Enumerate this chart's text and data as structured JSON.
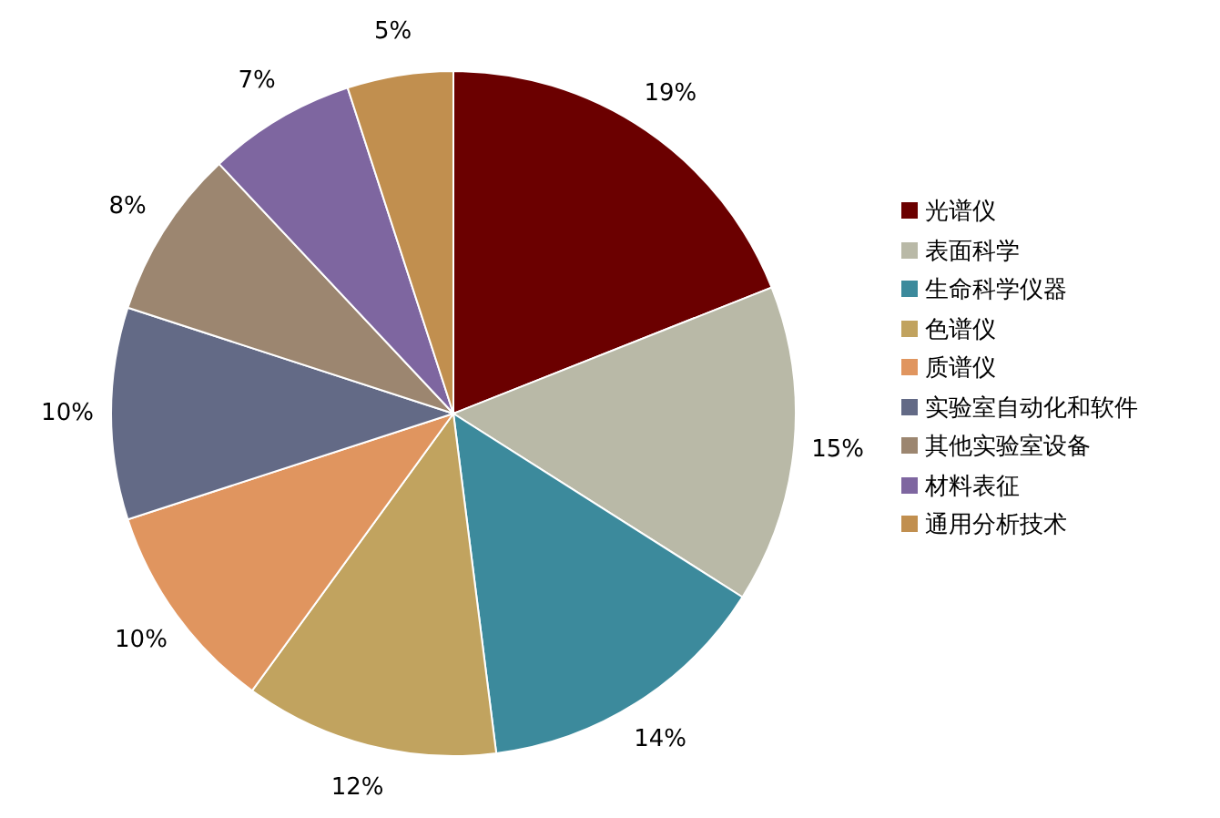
{
  "chart_data": {
    "type": "pie",
    "categories": [
      "光谱仪",
      "表面科学",
      "生命科学仪器",
      "色谱仪",
      "质谱仪",
      "实验室自动化和软件",
      "其他实验室设备",
      "材料表征",
      "通用分析技术"
    ],
    "values": [
      19,
      15,
      14,
      12,
      10,
      10,
      8,
      7,
      5
    ],
    "colors": [
      "#6b0000",
      "#b9b9a7",
      "#3c8a9c",
      "#c1a35f",
      "#e0955f",
      "#636a86",
      "#9c8670",
      "#7e66a0",
      "#c18f4f"
    ],
    "value_labels": [
      "19%",
      "15%",
      "14%",
      "12%",
      "10%",
      "10%",
      "8%",
      "7%",
      "5%"
    ],
    "legend": "right"
  }
}
